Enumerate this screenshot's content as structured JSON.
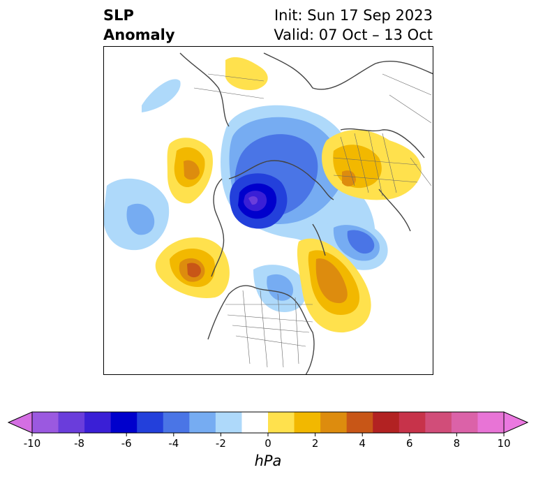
{
  "title": {
    "left_line1": "SLP",
    "left_line2": "Anomaly",
    "right_line1": "Init: Sun 17 Sep 2023",
    "right_line2": "Valid: 07 Oct – 13 Oct"
  },
  "map": {
    "projection": "north-polar-stereographic",
    "field": "sea-level-pressure-anomaly",
    "features": [
      {
        "name": "arctic-low",
        "sign": "negative",
        "peak_hPa": -7
      },
      {
        "name": "siberia-high",
        "sign": "positive",
        "peak_hPa": 3
      },
      {
        "name": "north-pacific-high",
        "sign": "positive",
        "peak_hPa": 4
      },
      {
        "name": "north-atlantic-high",
        "sign": "positive",
        "peak_hPa": 4
      },
      {
        "name": "east-asia-high",
        "sign": "positive",
        "peak_hPa": 3
      },
      {
        "name": "alaska-pacific-low",
        "sign": "negative",
        "peak_hPa": -3
      },
      {
        "name": "scandinavia-low",
        "sign": "negative",
        "peak_hPa": -4
      },
      {
        "name": "hudson-bay-low",
        "sign": "negative",
        "peak_hPa": -3
      },
      {
        "name": "north-america-low",
        "sign": "negative",
        "peak_hPa": -2
      },
      {
        "name": "europe-high",
        "sign": "positive",
        "peak_hPa": 2
      },
      {
        "name": "pacific-west-low",
        "sign": "negative",
        "peak_hPa": -1
      }
    ]
  },
  "colorbar": {
    "unit": "hPa",
    "extend": "both",
    "colors": [
      "#d46ee3",
      "#9b59e0",
      "#6a3ddb",
      "#3a1fd6",
      "#0000cc",
      "#2340db",
      "#4a75e6",
      "#76acf2",
      "#aed9fa",
      "#ffffff",
      "#ffe14d",
      "#f2b800",
      "#dd8c0e",
      "#c85617",
      "#b22222",
      "#c7334a",
      "#d14d79",
      "#db62a8",
      "#e874d6",
      "#eb78e0"
    ],
    "tick_values": [
      -10,
      -8,
      -6,
      -4,
      -2,
      0,
      2,
      4,
      6,
      8,
      10
    ],
    "tick_labels": [
      "-10",
      "-8",
      "-6",
      "-4",
      "-2",
      "0",
      "2",
      "4",
      "6",
      "8",
      "10"
    ]
  }
}
